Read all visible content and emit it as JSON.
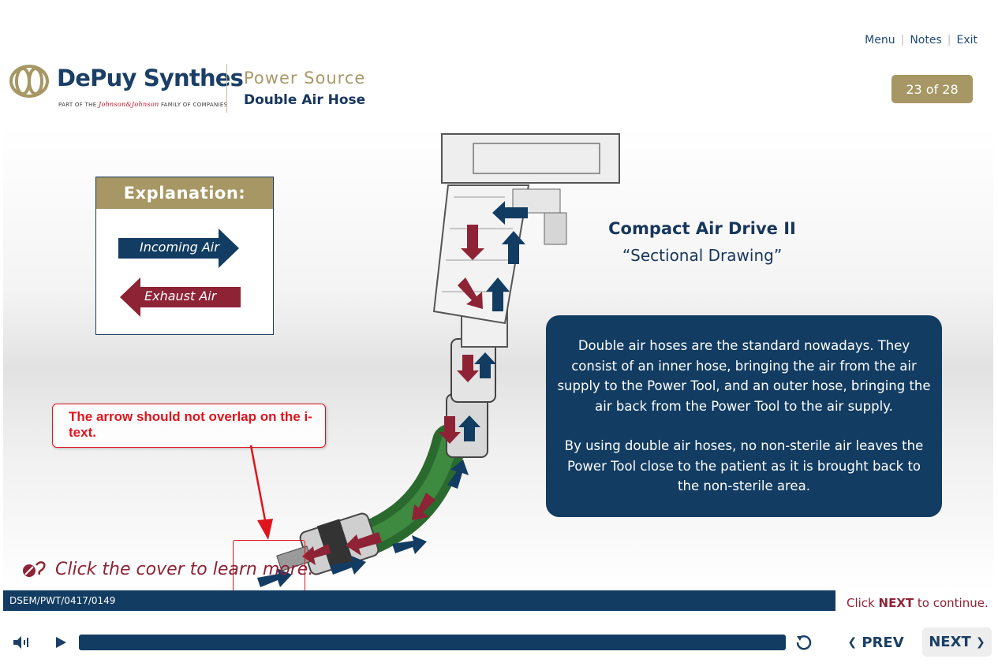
{
  "top_nav": {
    "menu": "Menu",
    "notes": "Notes",
    "exit": "Exit"
  },
  "brand": {
    "name": "DePuy Synthes",
    "tagline_prefix": "PART OF THE",
    "tagline_jj": "Johnson&Johnson",
    "tagline_suffix": "FAMILY OF COMPANIES",
    "color": "#1b3f66",
    "accent": "#a69764"
  },
  "header": {
    "title": "Power Source",
    "subtitle": "Double Air Hose"
  },
  "page_counter": "23 of 28",
  "explanation": {
    "heading": "Explanation:",
    "incoming": "Incoming Air",
    "exhaust": "Exhaust Air",
    "incoming_color": "#123c62",
    "exhaust_color": "#8e2335"
  },
  "device": {
    "title": "Compact Air Drive II",
    "subtitle": "“Sectional Drawing”"
  },
  "info": {
    "paragraph1": "Double air hoses are the standard nowadays. They consist of an inner hose, bringing the air from the air supply to the Power Tool, and an outer hose, bringing the air back from the Power Tool to the air supply.",
    "paragraph2": "By using double air hoses, no non-sterile air leaves the Power Tool close to the patient as it is brought back to the non-sterile area."
  },
  "annotation": {
    "text": "The arrow should not overlap on the i-text."
  },
  "cover_link": {
    "text": "Click the cover to learn more.",
    "icon": "cursor-click-icon"
  },
  "footer": {
    "code": "DSEM/PWT/0417/0149",
    "continue_prefix": "Click ",
    "continue_next": "NEXT",
    "continue_suffix": " to continue."
  },
  "player": {
    "audio_icon": "volume-icon",
    "play_icon": "play-icon",
    "replay_icon": "replay-icon",
    "prev_label": "PREV",
    "next_label": "NEXT"
  }
}
